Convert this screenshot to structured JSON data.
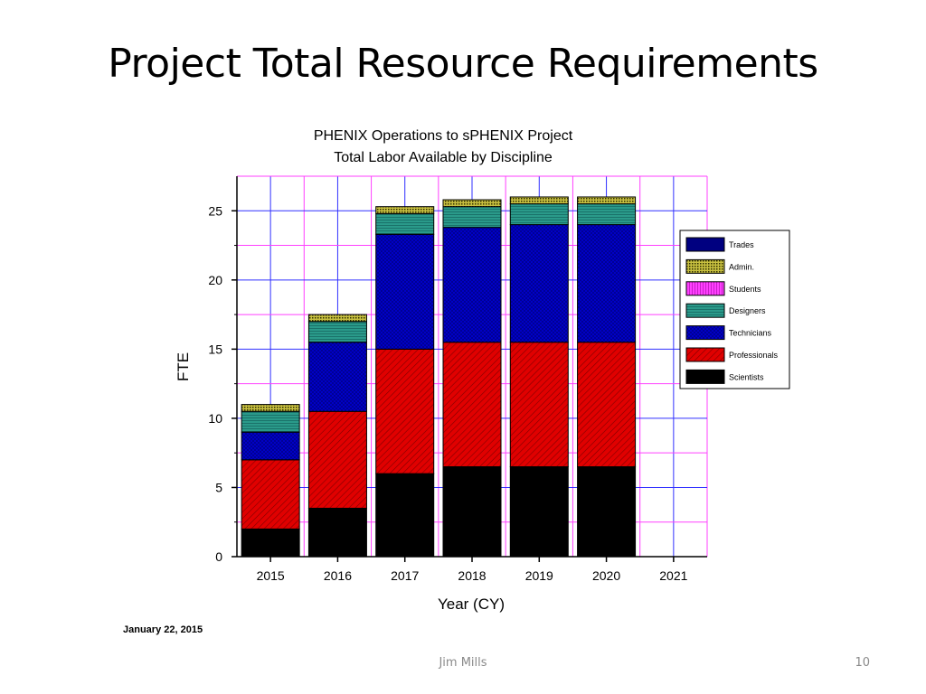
{
  "slide": {
    "title": "Project Total Resource Requirements",
    "footer_author": "Jim Mills",
    "page_number": "10",
    "date_stamp": "January 22, 2015"
  },
  "chart_data": {
    "type": "bar",
    "stacked": true,
    "title": "PHENIX Operations to sPHENIX Project",
    "subtitle": "Total Labor Available by Discipline",
    "xlabel": "Year (CY)",
    "ylabel": "FTE",
    "categories": [
      "2015",
      "2016",
      "2017",
      "2018",
      "2019",
      "2020"
    ],
    "x_ticks": [
      "2015",
      "2016",
      "2017",
      "2018",
      "2019",
      "2020",
      "2021"
    ],
    "ylim": [
      0,
      27.5
    ],
    "y_ticks": [
      0,
      5,
      10,
      15,
      20,
      25
    ],
    "grid": true,
    "legend_position": "right",
    "series": [
      {
        "name": "Scientists",
        "color": "#000000",
        "values": [
          2.0,
          3.5,
          6.0,
          6.5,
          6.5,
          6.5
        ]
      },
      {
        "name": "Professionals",
        "color": "#e00000",
        "values": [
          5.0,
          7.0,
          9.0,
          9.0,
          9.0,
          9.0
        ]
      },
      {
        "name": "Technicians",
        "color": "#0000d0",
        "values": [
          2.0,
          5.0,
          8.3,
          8.3,
          8.5,
          8.5
        ]
      },
      {
        "name": "Designers",
        "color": "#2a9a8a",
        "values": [
          1.5,
          1.5,
          1.5,
          1.5,
          1.5,
          1.5
        ]
      },
      {
        "name": "Students",
        "color": "#ff00ff",
        "values": [
          0,
          0,
          0,
          0,
          0,
          0
        ]
      },
      {
        "name": "Admin.",
        "color": "#8a8a10",
        "values": [
          0.5,
          0.5,
          0.5,
          0.5,
          0.5,
          0.5
        ]
      },
      {
        "name": "Trades",
        "color": "#000080",
        "values": [
          0,
          0,
          0,
          0,
          0,
          0
        ]
      }
    ],
    "legend_order": [
      "Trades",
      "Admin.",
      "Students",
      "Designers",
      "Technicians",
      "Professionals",
      "Scientists"
    ]
  }
}
